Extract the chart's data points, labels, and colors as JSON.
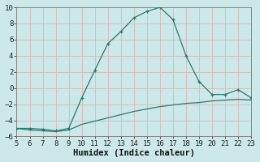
{
  "x_upper": [
    5,
    6,
    7,
    8,
    9,
    10,
    11,
    12,
    13,
    14,
    15,
    16,
    17,
    18,
    19,
    20,
    21,
    22,
    23
  ],
  "y_upper": [
    -5.0,
    -5.0,
    -5.1,
    -5.3,
    -5.0,
    -1.2,
    2.2,
    5.5,
    7.0,
    8.7,
    9.5,
    10.0,
    8.5,
    4.0,
    0.8,
    -0.8,
    -0.8,
    -0.2,
    -1.2
  ],
  "x_lower": [
    5,
    6,
    7,
    8,
    9,
    10,
    11,
    12,
    13,
    14,
    15,
    16,
    17,
    18,
    19,
    20,
    21,
    22,
    23
  ],
  "y_lower": [
    -5.0,
    -5.2,
    -5.3,
    -5.4,
    -5.2,
    -4.5,
    -4.1,
    -3.7,
    -3.3,
    -2.9,
    -2.6,
    -2.3,
    -2.1,
    -1.9,
    -1.8,
    -1.6,
    -1.5,
    -1.4,
    -1.5
  ],
  "line_color": "#2d7a6e",
  "bg_color": "#cce8e8",
  "grid_color": "#b8d8d8",
  "xlabel": "Humidex (Indice chaleur)",
  "ylim": [
    -6,
    10
  ],
  "xlim": [
    5,
    23
  ],
  "yticks": [
    -6,
    -4,
    -2,
    0,
    2,
    4,
    6,
    8,
    10
  ],
  "xticks": [
    5,
    6,
    7,
    8,
    9,
    10,
    11,
    12,
    13,
    14,
    15,
    16,
    17,
    18,
    19,
    20,
    21,
    22,
    23
  ],
  "font_size": 6.5,
  "label_font_size": 7.5,
  "marker_size": 3.5,
  "linewidth": 0.9
}
